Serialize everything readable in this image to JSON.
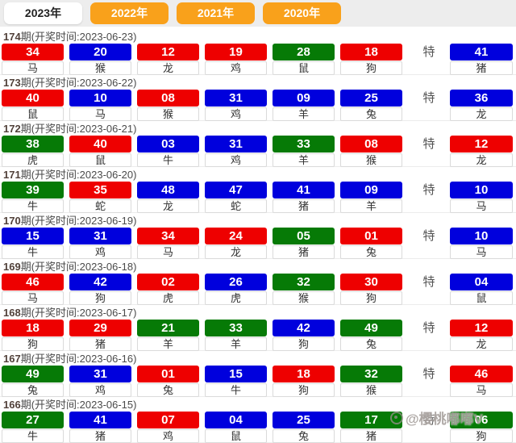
{
  "tabs": [
    {
      "label": "2023年",
      "active": true
    },
    {
      "label": "2022年",
      "active": false
    },
    {
      "label": "2021年",
      "active": false
    },
    {
      "label": "2020年",
      "active": false
    }
  ],
  "te_label": "特",
  "colors": {
    "red": "#ee0000",
    "blue": "#0000dd",
    "green": "#067a06",
    "tab_orange": "#f9a11b"
  },
  "rows": [
    {
      "period": "174",
      "draw_info": "期(开奖时间:2023-06-23)",
      "numbers": [
        {
          "num": "34",
          "zodiac": "马",
          "color": "red"
        },
        {
          "num": "20",
          "zodiac": "猴",
          "color": "blue"
        },
        {
          "num": "12",
          "zodiac": "龙",
          "color": "red"
        },
        {
          "num": "19",
          "zodiac": "鸡",
          "color": "red"
        },
        {
          "num": "28",
          "zodiac": "鼠",
          "color": "green"
        },
        {
          "num": "18",
          "zodiac": "狗",
          "color": "red"
        }
      ],
      "special": {
        "num": "41",
        "zodiac": "猪",
        "color": "blue"
      }
    },
    {
      "period": "173",
      "draw_info": "期(开奖时间:2023-06-22)",
      "numbers": [
        {
          "num": "40",
          "zodiac": "鼠",
          "color": "red"
        },
        {
          "num": "10",
          "zodiac": "马",
          "color": "blue"
        },
        {
          "num": "08",
          "zodiac": "猴",
          "color": "red"
        },
        {
          "num": "31",
          "zodiac": "鸡",
          "color": "blue"
        },
        {
          "num": "09",
          "zodiac": "羊",
          "color": "blue"
        },
        {
          "num": "25",
          "zodiac": "兔",
          "color": "blue"
        }
      ],
      "special": {
        "num": "36",
        "zodiac": "龙",
        "color": "blue"
      }
    },
    {
      "period": "172",
      "draw_info": "期(开奖时间:2023-06-21)",
      "numbers": [
        {
          "num": "38",
          "zodiac": "虎",
          "color": "green"
        },
        {
          "num": "40",
          "zodiac": "鼠",
          "color": "red"
        },
        {
          "num": "03",
          "zodiac": "牛",
          "color": "blue"
        },
        {
          "num": "31",
          "zodiac": "鸡",
          "color": "blue"
        },
        {
          "num": "33",
          "zodiac": "羊",
          "color": "green"
        },
        {
          "num": "08",
          "zodiac": "猴",
          "color": "red"
        }
      ],
      "special": {
        "num": "12",
        "zodiac": "龙",
        "color": "red"
      }
    },
    {
      "period": "171",
      "draw_info": "期(开奖时间:2023-06-20)",
      "numbers": [
        {
          "num": "39",
          "zodiac": "牛",
          "color": "green"
        },
        {
          "num": "35",
          "zodiac": "蛇",
          "color": "red"
        },
        {
          "num": "48",
          "zodiac": "龙",
          "color": "blue"
        },
        {
          "num": "47",
          "zodiac": "蛇",
          "color": "blue"
        },
        {
          "num": "41",
          "zodiac": "猪",
          "color": "blue"
        },
        {
          "num": "09",
          "zodiac": "羊",
          "color": "blue"
        }
      ],
      "special": {
        "num": "10",
        "zodiac": "马",
        "color": "blue"
      }
    },
    {
      "period": "170",
      "draw_info": "期(开奖时间:2023-06-19)",
      "numbers": [
        {
          "num": "15",
          "zodiac": "牛",
          "color": "blue"
        },
        {
          "num": "31",
          "zodiac": "鸡",
          "color": "blue"
        },
        {
          "num": "34",
          "zodiac": "马",
          "color": "red"
        },
        {
          "num": "24",
          "zodiac": "龙",
          "color": "red"
        },
        {
          "num": "05",
          "zodiac": "猪",
          "color": "green"
        },
        {
          "num": "01",
          "zodiac": "兔",
          "color": "red"
        }
      ],
      "special": {
        "num": "10",
        "zodiac": "马",
        "color": "blue"
      }
    },
    {
      "period": "169",
      "draw_info": "期(开奖时间:2023-06-18)",
      "numbers": [
        {
          "num": "46",
          "zodiac": "马",
          "color": "red"
        },
        {
          "num": "42",
          "zodiac": "狗",
          "color": "blue"
        },
        {
          "num": "02",
          "zodiac": "虎",
          "color": "red"
        },
        {
          "num": "26",
          "zodiac": "虎",
          "color": "blue"
        },
        {
          "num": "32",
          "zodiac": "猴",
          "color": "green"
        },
        {
          "num": "30",
          "zodiac": "狗",
          "color": "red"
        }
      ],
      "special": {
        "num": "04",
        "zodiac": "鼠",
        "color": "blue"
      }
    },
    {
      "period": "168",
      "draw_info": "期(开奖时间:2023-06-17)",
      "numbers": [
        {
          "num": "18",
          "zodiac": "狗",
          "color": "red"
        },
        {
          "num": "29",
          "zodiac": "猪",
          "color": "red"
        },
        {
          "num": "21",
          "zodiac": "羊",
          "color": "green"
        },
        {
          "num": "33",
          "zodiac": "羊",
          "color": "green"
        },
        {
          "num": "42",
          "zodiac": "狗",
          "color": "blue"
        },
        {
          "num": "49",
          "zodiac": "兔",
          "color": "green"
        }
      ],
      "special": {
        "num": "12",
        "zodiac": "龙",
        "color": "red"
      }
    },
    {
      "period": "167",
      "draw_info": "期(开奖时间:2023-06-16)",
      "numbers": [
        {
          "num": "49",
          "zodiac": "兔",
          "color": "green"
        },
        {
          "num": "31",
          "zodiac": "鸡",
          "color": "blue"
        },
        {
          "num": "01",
          "zodiac": "兔",
          "color": "red"
        },
        {
          "num": "15",
          "zodiac": "牛",
          "color": "blue"
        },
        {
          "num": "18",
          "zodiac": "狗",
          "color": "red"
        },
        {
          "num": "32",
          "zodiac": "猴",
          "color": "green"
        }
      ],
      "special": {
        "num": "46",
        "zodiac": "马",
        "color": "red"
      }
    },
    {
      "period": "166",
      "draw_info": "期(开奖时间:2023-06-15)",
      "numbers": [
        {
          "num": "27",
          "zodiac": "牛",
          "color": "green"
        },
        {
          "num": "41",
          "zodiac": "猪",
          "color": "blue"
        },
        {
          "num": "07",
          "zodiac": "鸡",
          "color": "red"
        },
        {
          "num": "04",
          "zodiac": "鼠",
          "color": "blue"
        },
        {
          "num": "25",
          "zodiac": "兔",
          "color": "blue"
        },
        {
          "num": "17",
          "zodiac": "猪",
          "color": "green"
        }
      ],
      "special": {
        "num": "06",
        "zodiac": "狗",
        "color": "green"
      }
    }
  ],
  "watermark": {
    "icon": "weibo-badge-icon",
    "text": "@樱桃嘟嘟V"
  }
}
